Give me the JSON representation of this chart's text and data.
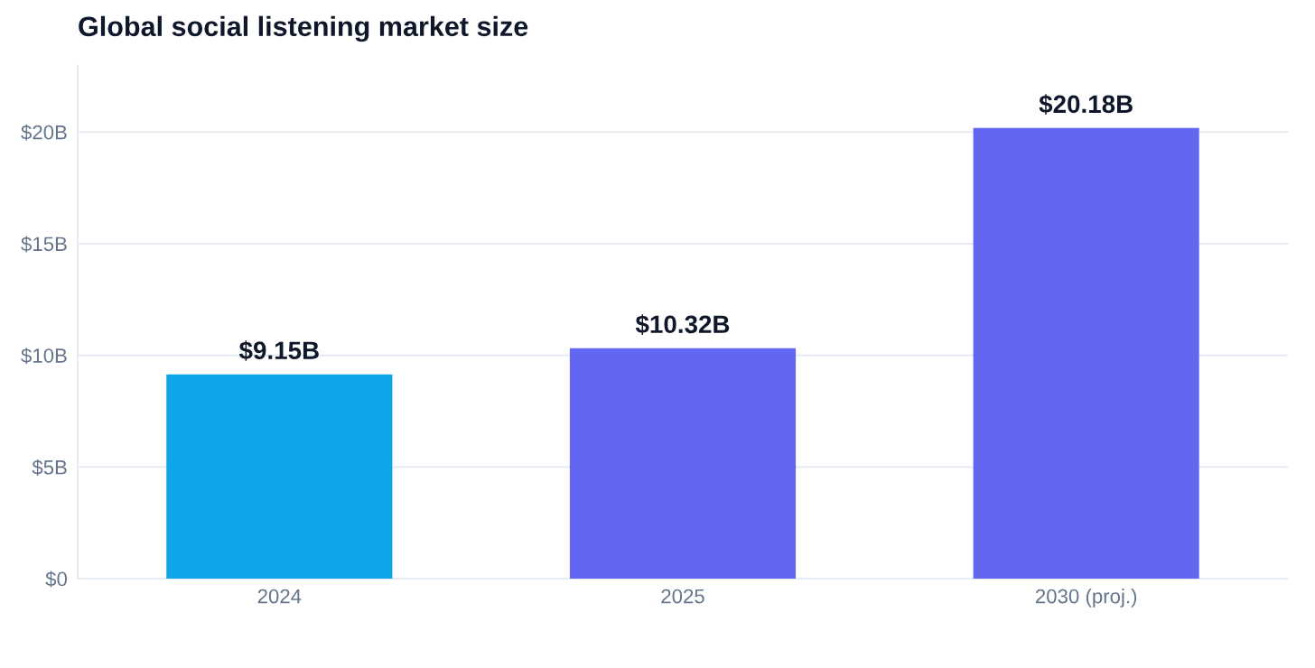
{
  "chart_data": {
    "type": "bar",
    "title": "Global social listening market size",
    "categories": [
      "2024",
      "2025",
      "2030 (proj.)"
    ],
    "values": [
      9.15,
      10.32,
      20.18
    ],
    "colors": [
      "#0ea5e9",
      "#6366f1",
      "#6366f1"
    ],
    "value_labels": [
      "$9.15B",
      "$10.32B",
      "$20.18B"
    ],
    "ylim": [
      0,
      23
    ],
    "yticks": [
      {
        "value": 0,
        "label": "$0"
      },
      {
        "value": 5,
        "label": "$5B"
      },
      {
        "value": 10,
        "label": "$10B"
      },
      {
        "value": 15,
        "label": "$15B"
      },
      {
        "value": 20,
        "label": "$20B"
      }
    ],
    "grid": "y",
    "legend": false
  }
}
